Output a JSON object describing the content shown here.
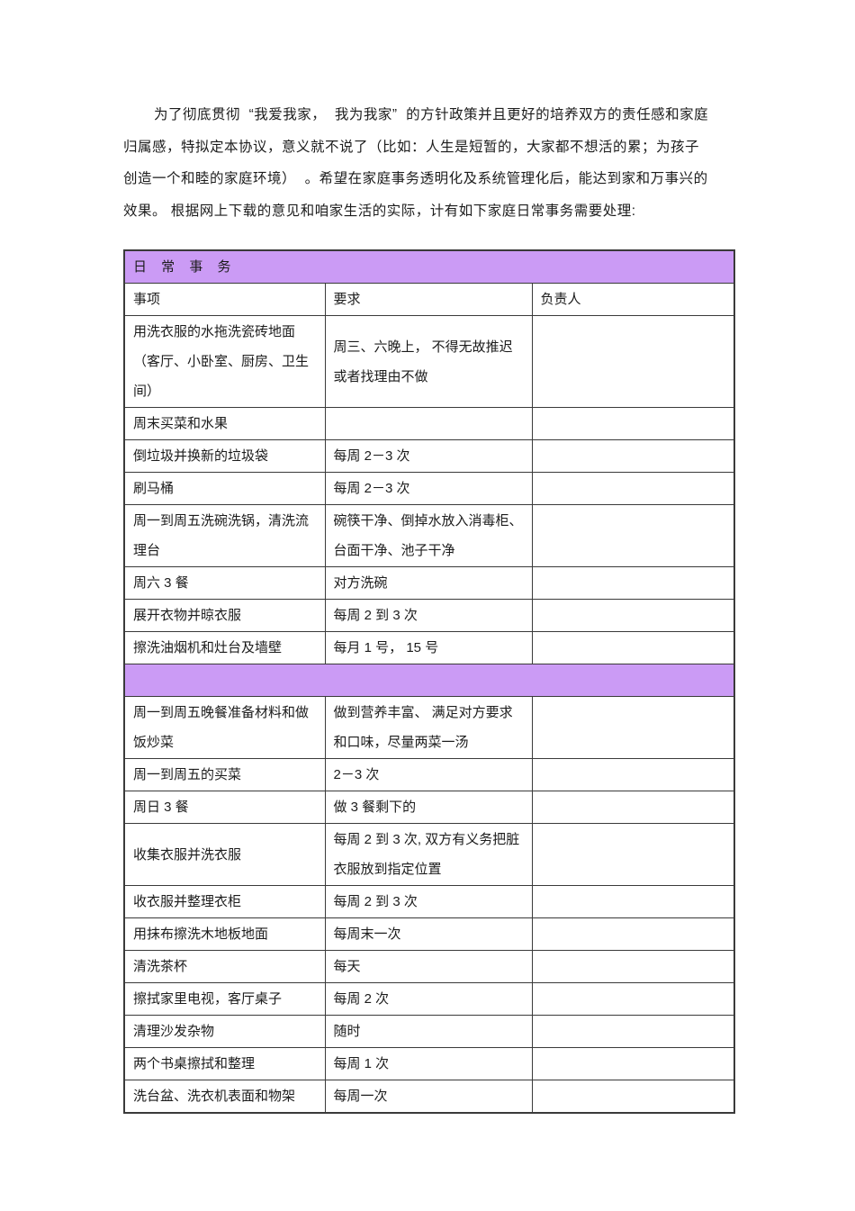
{
  "page": {
    "background": "#ffffff",
    "accent_purple": "#cb9bf5",
    "border_color": "#3a3a3a"
  },
  "intro": {
    "lines": [
      "为了彻底贯彻  “我爱我家，  我为我家”  的方针政策并且更好的培养双方的责任感和家庭",
      "归属感，特拟定本协议，意义就不说了（比如：人生是短暂的，大家都不想活的累；为孩子",
      "创造一个和睦的家庭环境）  。希望在家庭事务透明化及系统管理化后，能达到家和万事兴的",
      "效果。 根据网上下载的意见和咱家生活的实际，计有如下家庭日常事务需要处理:"
    ]
  },
  "table": {
    "title": "日 常 事 务",
    "columns": [
      "事项",
      "要求",
      "负责人"
    ],
    "rows": [
      {
        "item": "用洗衣服的水拖洗瓷砖地面（客厅、小卧室、厨房、卫生间）",
        "req": "周三、六晚上， 不得无故推迟或者找理由不做",
        "owner": ""
      },
      {
        "item": "周末买菜和水果",
        "req": "",
        "owner": ""
      },
      {
        "item": "倒垃圾并换新的垃圾袋",
        "req": "每周 2－3 次",
        "owner": ""
      },
      {
        "item": "刷马桶",
        "req": "每周 2－3 次",
        "owner": ""
      },
      {
        "item": "周一到周五洗碗洗锅，清洗流理台",
        "req": "碗筷干净、倒掉水放入消毒柜、台面干净、池子干净",
        "owner": ""
      },
      {
        "item": "周六 3 餐",
        "req": "对方洗碗",
        "owner": ""
      },
      {
        "item": "展开衣物并晾衣服",
        "req": "每周 2 到 3 次",
        "owner": ""
      },
      {
        "item": "擦洗油烟机和灶台及墙壁",
        "req": "每月 1 号， 15 号",
        "owner": ""
      },
      {
        "divider": true
      },
      {
        "item": "周一到周五晚餐准备材料和做饭炒菜",
        "req": "做到营养丰富、 满足对方要求和口味，尽量两菜一汤",
        "owner": ""
      },
      {
        "item": "周一到周五的买菜",
        "req": "2－3 次",
        "owner": ""
      },
      {
        "item": "周日 3 餐",
        "req": "做 3 餐剩下的",
        "owner": ""
      },
      {
        "item": "收集衣服并洗衣服",
        "req": "每周 2 到 3 次, 双方有义务把脏衣服放到指定位置",
        "owner": ""
      },
      {
        "item": "收衣服并整理衣柜",
        "req": "每周 2 到 3 次",
        "owner": ""
      },
      {
        "item": "用抹布擦洗木地板地面",
        "req": "每周末一次",
        "owner": ""
      },
      {
        "item": "清洗茶杯",
        "req": "每天",
        "owner": ""
      },
      {
        "item": "擦拭家里电视，客厅桌子",
        "req": "每周 2 次",
        "owner": ""
      },
      {
        "item": "清理沙发杂物",
        "req": "随时",
        "owner": ""
      },
      {
        "item": "两个书桌擦拭和整理",
        "req": "每周 1 次",
        "owner": ""
      },
      {
        "item": "洗台盆、洗衣机表面和物架",
        "req": "每周一次",
        "owner": ""
      }
    ]
  }
}
